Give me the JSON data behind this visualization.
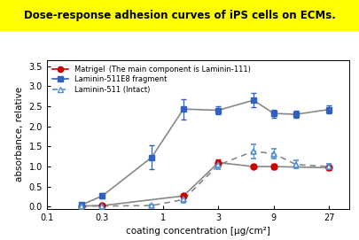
{
  "title": "Dose-response adhesion curves of iPS cells on ECMs.",
  "title_bg": "#ffff00",
  "xlabel": "coating concentration [μg/cm²]",
  "ylabel": "absorbance, relative",
  "ylim": [
    -0.05,
    3.65
  ],
  "yticks": [
    0.0,
    0.5,
    1.0,
    1.5,
    2.0,
    2.5,
    3.0,
    3.5
  ],
  "xticks": [
    0.1,
    0.3,
    1,
    3,
    9,
    27
  ],
  "xtick_labels": [
    "0.1",
    "0.3",
    "1",
    "3",
    "9",
    "27"
  ],
  "matrigel": {
    "x": [
      0.2,
      0.3,
      1.5,
      3,
      6,
      9,
      27
    ],
    "y": [
      0.02,
      0.03,
      0.27,
      1.1,
      1.0,
      1.0,
      0.97
    ],
    "yerr": [
      0.02,
      0.02,
      0.05,
      0.08,
      0.05,
      0.06,
      0.05
    ],
    "color": "#cc0000",
    "line_color": "#888888",
    "marker": "o",
    "linestyle": "-",
    "label_bold": "Matrigel",
    "label_small": " (The main component is Laminin-111)"
  },
  "lam511e8": {
    "x": [
      0.2,
      0.3,
      0.8,
      1.5,
      3,
      6,
      9,
      14,
      27
    ],
    "y": [
      0.05,
      0.27,
      1.23,
      2.43,
      2.4,
      2.65,
      2.32,
      2.3,
      2.42
    ],
    "yerr": [
      0.03,
      0.07,
      0.3,
      0.25,
      0.1,
      0.18,
      0.1,
      0.08,
      0.1
    ],
    "color": "#3060c0",
    "line_color": "#888888",
    "marker": "s",
    "linestyle": "-",
    "label": "Laminin-511E8 fragment"
  },
  "lam511intact": {
    "x": [
      0.2,
      0.3,
      0.8,
      1.5,
      3,
      6,
      9,
      14,
      27
    ],
    "y": [
      0.02,
      0.02,
      0.03,
      0.18,
      1.04,
      1.38,
      1.32,
      1.05,
      1.0
    ],
    "yerr": [
      0.015,
      0.015,
      0.025,
      0.09,
      0.1,
      0.17,
      0.13,
      0.1,
      0.07
    ],
    "color": "#5090d0",
    "line_color": "#888888",
    "marker": "^",
    "linestyle": "--",
    "label": "Laminin-511 (Intact)"
  },
  "line_color": "#888888",
  "marker_size": 5,
  "linewidth": 1.2,
  "capsize": 2.5,
  "elinewidth": 0.9
}
